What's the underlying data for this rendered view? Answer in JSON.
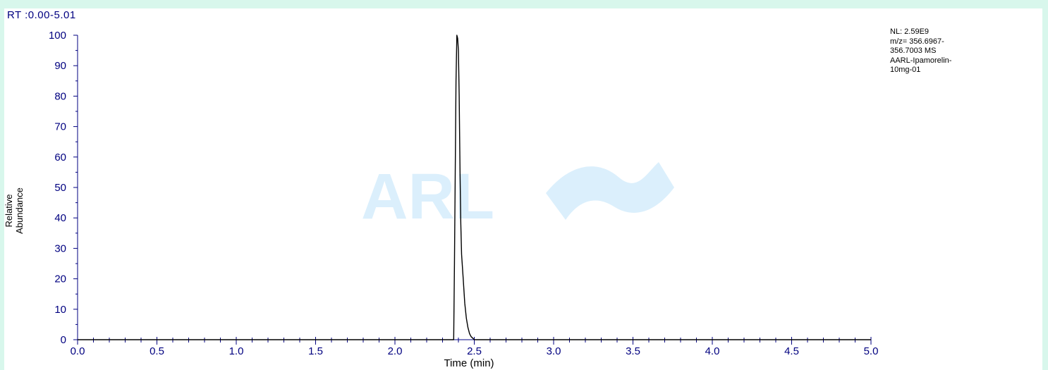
{
  "range_label": "RT :0.00-5.01",
  "colors": {
    "background": "#d8f7ec",
    "axis": "#000080",
    "trace": "#000000",
    "watermark": "#dbeffc"
  },
  "watermark": {
    "text": "ARL"
  },
  "annotation": [
    "NL: 2.59E9",
    "m/z= 356.6967-",
    "356.7003 MS",
    "AARL-Ipamorelin-",
    "10mg-01"
  ],
  "chart_data": {
    "type": "line",
    "xlabel": "Time (min)",
    "ylabel": "Relative Abundance",
    "xlim": [
      0,
      5.0
    ],
    "ylim": [
      0,
      100
    ],
    "x_ticks": [
      "0.0",
      "0.5",
      "1.0",
      "1.5",
      "2.0",
      "2.5",
      "3.0",
      "3.5",
      "4.0",
      "4.5",
      "5.0"
    ],
    "y_ticks": [
      "0",
      "10",
      "20",
      "30",
      "40",
      "50",
      "60",
      "70",
      "80",
      "90",
      "100"
    ],
    "grid": false,
    "series": [
      {
        "x": [
          0,
          2.37,
          2.375,
          2.38,
          2.385,
          2.39,
          2.395,
          2.4,
          2.405,
          2.41,
          2.415,
          2.42,
          2.43,
          2.44,
          2.45,
          2.46,
          2.47,
          2.48,
          2.49,
          2.5,
          5.0
        ],
        "y": [
          0,
          0,
          25,
          55,
          85,
          100,
          99,
          95,
          80,
          55,
          38,
          28,
          20,
          12,
          7,
          4,
          2,
          1,
          0.5,
          0,
          0
        ]
      }
    ]
  }
}
